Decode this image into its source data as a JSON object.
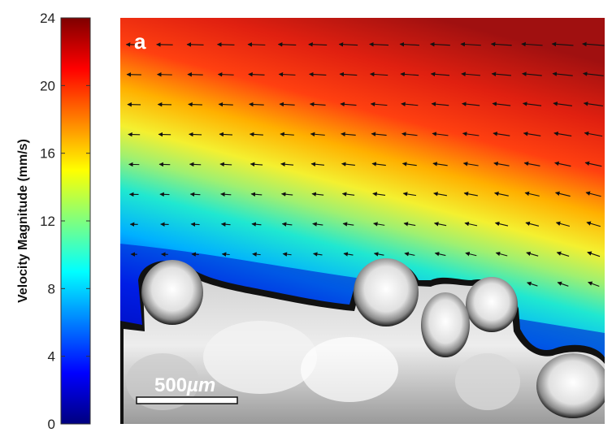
{
  "chart_data": {
    "type": "heatmap",
    "title": "",
    "colorbar": {
      "label": "Velocity Magnitude (mm/s)",
      "min": 0,
      "max": 24,
      "ticks": [
        "0",
        "4",
        "8",
        "12",
        "16",
        "20",
        "24"
      ],
      "colormap": "jet"
    },
    "panel_label": "a",
    "scale_bar": {
      "value": "500",
      "unit": "µm"
    },
    "vector_field": "arrows point right-to-left (upstream-left), magnitude increasing toward top-right",
    "colors": {
      "jet_low": "#00007f",
      "jet_high": "#7f0000",
      "particles": "#e6e6e6",
      "particle_edge": "#111111"
    }
  }
}
